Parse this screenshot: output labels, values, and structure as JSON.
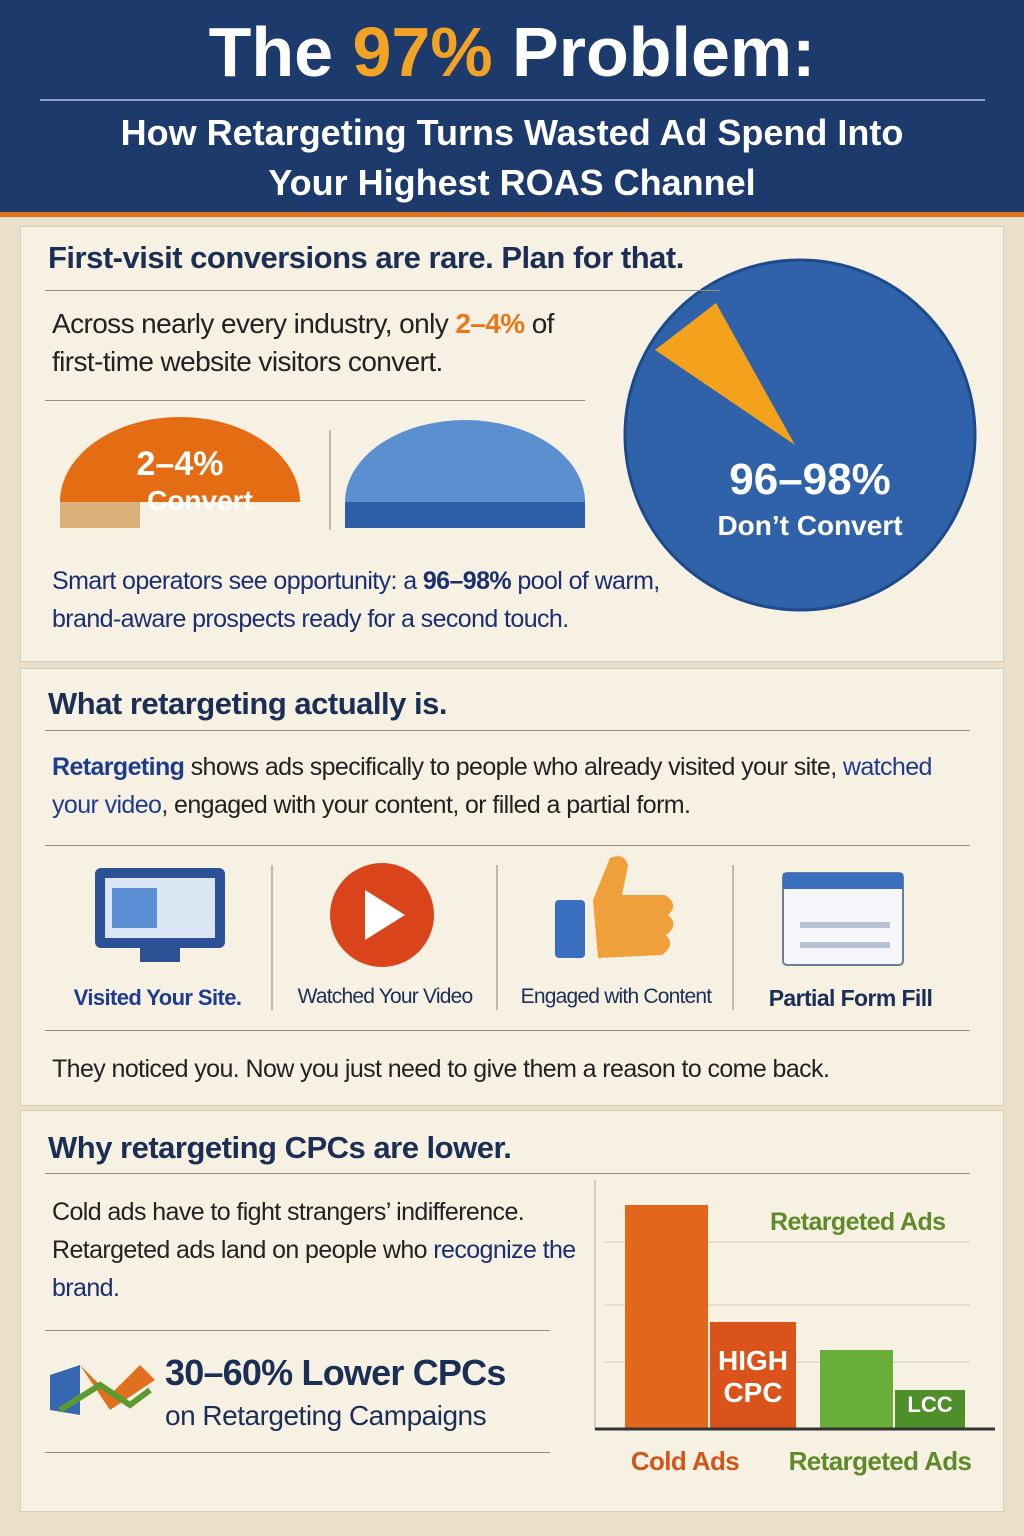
{
  "header": {
    "title": [
      "The ",
      "97%",
      " Problem:"
    ],
    "subtitle": "How Retargeting Turns Wasted Ad Spend Into Your Highest ROAS Channel"
  },
  "section1": {
    "heading": "First-visit conversions are rare. Plan for that.",
    "intro": [
      "Across nearly every industry, only ",
      "2–4%",
      " of first-time website visitors convert."
    ],
    "convert_pct": "2–4%",
    "convert_label": "Convert",
    "pie_pct": "96–98%",
    "pie_label": "Don’t Convert",
    "outro": [
      "Smart operators see opportunity: a ",
      "96–98%",
      " pool of warm, brand-aware prospects ready for a second touch."
    ]
  },
  "section2": {
    "heading": "What retargeting actually is.",
    "text": [
      "Retargeting",
      " shows ads specifically to people who already visited your site, ",
      "watched your video",
      ", engaged with your content, or filled a partial form."
    ],
    "icons": [
      "Visited Your Site.",
      "Watched Your Video",
      "Engaged with Content",
      "Partial Form Fill"
    ],
    "footer": "They noticed you. Now you just need to give them a reason to come back."
  },
  "section3": {
    "heading": "Why retargeting CPCs are lower.",
    "text": [
      "Cold ads have to fight strangers’ indifference. Retargeted ads land on people who ",
      "recognize the brand."
    ],
    "stat": "30–60% Lower CPCs",
    "stat_sub": "on Retargeting Campaigns",
    "chart": {
      "legend": "Retargeted Ads",
      "bar_labels": [
        "HIGH CPC",
        "LCC"
      ],
      "categories": [
        "Cold Ads",
        "Retargeted Ads"
      ]
    }
  }
}
